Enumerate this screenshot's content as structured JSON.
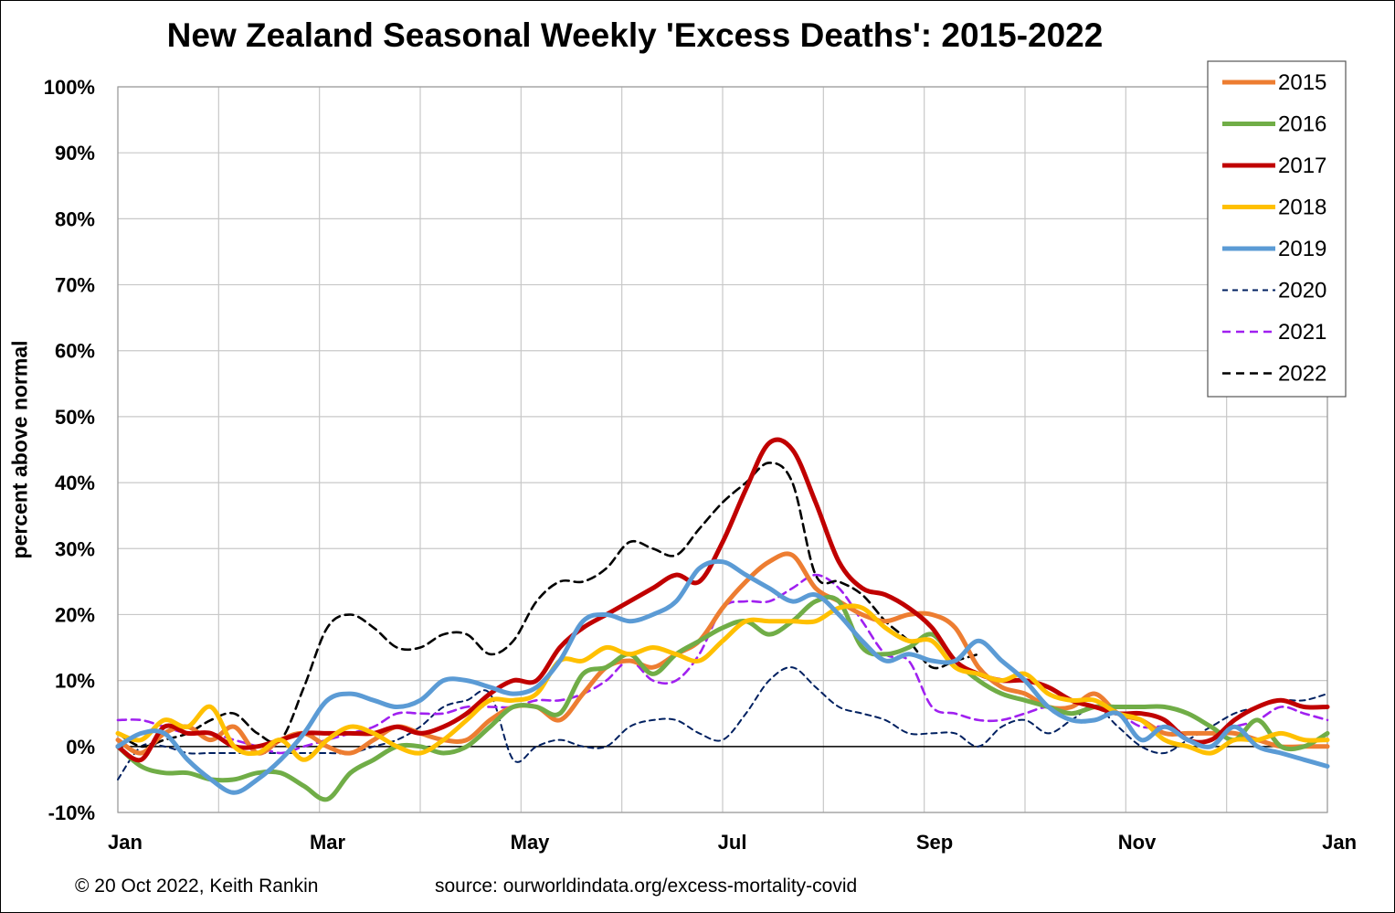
{
  "title": "New Zealand Seasonal Weekly 'Excess Deaths': 2015-2022",
  "footer": {
    "copyright": "© 20 Oct 2022, Keith Rankin",
    "source": "source: ourworldindata.org/excess-mortality-covid"
  },
  "chart_data": {
    "type": "line",
    "title": "New Zealand Seasonal Weekly 'Excess Deaths': 2015-2022",
    "xlabel": "",
    "ylabel": "percent above normal",
    "ylim": [
      -10,
      100
    ],
    "yticks": [
      "-10%",
      "0%",
      "10%",
      "20%",
      "30%",
      "40%",
      "50%",
      "60%",
      "70%",
      "80%",
      "90%",
      "100%"
    ],
    "xlim": [
      0,
      52
    ],
    "xticks": [
      {
        "label": "Jan",
        "week": 0
      },
      {
        "label": "Mar",
        "week": 8.7
      },
      {
        "label": "May",
        "week": 17.4
      },
      {
        "label": "Jul",
        "week": 26.1
      },
      {
        "label": "Sep",
        "week": 34.8
      },
      {
        "label": "Nov",
        "week": 43.5
      },
      {
        "label": "Jan",
        "week": 52.2
      }
    ],
    "x_unit": "week of year",
    "grid": true,
    "legend_position": "top-right",
    "series": [
      {
        "name": "2015",
        "color": "#ED7D31",
        "style": "solid",
        "x": [
          0,
          1,
          2,
          3,
          4,
          5,
          6,
          7,
          8,
          9,
          10,
          11,
          12,
          13,
          14,
          15,
          16,
          17,
          18,
          19,
          20,
          21,
          22,
          23,
          24,
          25,
          26,
          27,
          28,
          29,
          30,
          31,
          32,
          33,
          34,
          35,
          36,
          37,
          38,
          39,
          40,
          41,
          42,
          43,
          44,
          45,
          46,
          47,
          48,
          49,
          50,
          51,
          52
        ],
        "y": [
          1,
          -1,
          2,
          3,
          1,
          3,
          -1,
          1,
          2,
          0,
          -1,
          1,
          3,
          2,
          1,
          1,
          4,
          6,
          6,
          4,
          8,
          12,
          13,
          12,
          14,
          16,
          21,
          25,
          28,
          29,
          24,
          22,
          20,
          19,
          20,
          20,
          18,
          12,
          9,
          8,
          6,
          6,
          8,
          5,
          4,
          2,
          2,
          2,
          2,
          1,
          0,
          0,
          0
        ]
      },
      {
        "name": "2016",
        "color": "#70AD47",
        "style": "solid",
        "x": [
          0,
          1,
          2,
          3,
          4,
          5,
          6,
          7,
          8,
          9,
          10,
          11,
          12,
          13,
          14,
          15,
          16,
          17,
          18,
          19,
          20,
          21,
          22,
          23,
          24,
          25,
          26,
          27,
          28,
          29,
          30,
          31,
          32,
          33,
          34,
          35,
          36,
          37,
          38,
          39,
          40,
          41,
          42,
          43,
          44,
          45,
          46,
          47,
          48,
          49,
          50,
          51,
          52
        ],
        "y": [
          0,
          -3,
          -4,
          -4,
          -5,
          -5,
          -4,
          -4,
          -6,
          -8,
          -4,
          -2,
          0,
          0,
          -1,
          0,
          3,
          6,
          6,
          5,
          11,
          12,
          14,
          11,
          14,
          16,
          18,
          19,
          17,
          19,
          22,
          22,
          15,
          14,
          15,
          17,
          13,
          10,
          8,
          7,
          6,
          5,
          6,
          6,
          6,
          6,
          5,
          3,
          1,
          4,
          0,
          0,
          2
        ]
      },
      {
        "name": "2017",
        "color": "#C00000",
        "style": "solid",
        "x": [
          0,
          1,
          2,
          3,
          4,
          5,
          6,
          7,
          8,
          9,
          10,
          11,
          12,
          13,
          14,
          15,
          16,
          17,
          18,
          19,
          20,
          21,
          22,
          23,
          24,
          25,
          26,
          27,
          28,
          29,
          30,
          31,
          32,
          33,
          34,
          35,
          36,
          37,
          38,
          39,
          40,
          41,
          42,
          43,
          44,
          45,
          46,
          47,
          48,
          49,
          50,
          51,
          52
        ],
        "y": [
          0,
          -2,
          3,
          2,
          2,
          0,
          0,
          1,
          2,
          2,
          2,
          2,
          3,
          2,
          3,
          5,
          8,
          10,
          10,
          15,
          18,
          20,
          22,
          24,
          26,
          25,
          31,
          39,
          46,
          45,
          37,
          28,
          24,
          23,
          21,
          18,
          13,
          11,
          10,
          10,
          9,
          7,
          6,
          5,
          5,
          4,
          1,
          1,
          4,
          6,
          7,
          6,
          6
        ]
      },
      {
        "name": "2018",
        "color": "#FFC000",
        "style": "solid",
        "x": [
          0,
          1,
          2,
          3,
          4,
          5,
          6,
          7,
          8,
          9,
          10,
          11,
          12,
          13,
          14,
          15,
          16,
          17,
          18,
          19,
          20,
          21,
          22,
          23,
          24,
          25,
          26,
          27,
          28,
          29,
          30,
          31,
          32,
          33,
          34,
          35,
          36,
          37,
          38,
          39,
          40,
          41,
          42,
          43,
          44,
          45,
          46,
          47,
          48,
          49,
          50,
          51,
          52
        ],
        "y": [
          2,
          1,
          4,
          3,
          6,
          0,
          -1,
          1,
          -2,
          1,
          3,
          2,
          0,
          -1,
          1,
          4,
          7,
          7,
          8,
          13,
          13,
          15,
          14,
          15,
          14,
          13,
          16,
          19,
          19,
          19,
          19,
          21,
          21,
          18,
          16,
          16,
          12,
          11,
          10,
          11,
          8,
          7,
          7,
          5,
          4,
          1,
          0,
          -1,
          1,
          1,
          2,
          1,
          1
        ]
      },
      {
        "name": "2019",
        "color": "#5B9BD5",
        "style": "solid",
        "x": [
          0,
          1,
          2,
          3,
          4,
          5,
          6,
          7,
          8,
          9,
          10,
          11,
          12,
          13,
          14,
          15,
          16,
          17,
          18,
          19,
          20,
          21,
          22,
          23,
          24,
          25,
          26,
          27,
          28,
          29,
          30,
          31,
          32,
          33,
          34,
          35,
          36,
          37,
          38,
          39,
          40,
          41,
          42,
          43,
          44,
          45,
          46,
          47,
          48,
          49,
          50,
          51,
          52
        ],
        "y": [
          0,
          2,
          2,
          -2,
          -5,
          -7,
          -5,
          -2,
          2,
          7,
          8,
          7,
          6,
          7,
          10,
          10,
          9,
          8,
          9,
          13,
          19,
          20,
          19,
          20,
          22,
          27,
          28,
          26,
          24,
          22,
          23,
          20,
          16,
          13,
          14,
          13,
          13,
          16,
          13,
          10,
          6,
          4,
          4,
          5,
          1,
          3,
          1,
          0,
          3,
          0,
          -1,
          -2,
          -3
        ]
      },
      {
        "name": "2020",
        "color": "#002060",
        "style": "dashed-fine",
        "x": [
          0,
          1,
          2,
          3,
          4,
          5,
          6,
          7,
          8,
          9,
          10,
          11,
          12,
          13,
          14,
          15,
          16,
          17,
          18,
          19,
          20,
          21,
          22,
          23,
          24,
          25,
          26,
          27,
          28,
          29,
          30,
          31,
          32,
          33,
          34,
          35,
          36,
          37,
          38,
          39,
          40,
          41,
          42,
          43,
          44,
          45,
          46,
          47,
          48,
          49,
          50,
          51,
          52
        ],
        "y": [
          -5,
          0,
          0,
          -1,
          -1,
          -1,
          -1,
          -1,
          -1,
          -1,
          -1,
          0,
          1,
          3,
          6,
          7,
          8,
          -2,
          0,
          1,
          0,
          0,
          3,
          4,
          4,
          2,
          1,
          5,
          10,
          12,
          9,
          6,
          5,
          4,
          2,
          2,
          2,
          0,
          3,
          4,
          2,
          4,
          6,
          3,
          0,
          -1,
          1,
          3,
          5,
          6,
          7,
          7,
          8
        ]
      },
      {
        "name": "2021",
        "color": "#A020F0",
        "style": "dashed",
        "x": [
          0,
          1,
          2,
          3,
          4,
          5,
          6,
          7,
          8,
          9,
          10,
          11,
          12,
          13,
          14,
          15,
          16,
          17,
          18,
          19,
          20,
          21,
          22,
          23,
          24,
          25,
          26,
          27,
          28,
          29,
          30,
          31,
          32,
          33,
          34,
          35,
          36,
          37,
          38,
          39,
          40,
          41,
          42,
          43,
          44,
          45,
          46,
          47,
          48,
          49,
          50,
          51,
          52
        ],
        "y": [
          4,
          4,
          3,
          2,
          2,
          1,
          0,
          -1,
          0,
          1,
          2,
          3,
          5,
          5,
          5,
          6,
          6,
          6,
          7,
          7,
          8,
          10,
          13,
          10,
          10,
          14,
          21,
          22,
          22,
          24,
          26,
          24,
          19,
          14,
          13,
          6,
          5,
          4,
          4,
          5,
          6,
          5,
          6,
          5,
          3,
          3,
          2,
          2,
          3,
          4,
          6,
          5,
          4
        ]
      },
      {
        "name": "2022",
        "color": "#000000",
        "style": "dashed",
        "x": [
          0,
          1,
          2,
          3,
          4,
          5,
          6,
          7,
          8,
          9,
          10,
          11,
          12,
          13,
          14,
          15,
          16,
          17,
          18,
          19,
          20,
          21,
          22,
          23,
          24,
          25,
          26,
          27,
          28,
          29,
          30,
          31,
          32,
          33,
          34,
          35,
          36,
          37
        ],
        "y": [
          2,
          0,
          1,
          2,
          4,
          5,
          2,
          1,
          9,
          18,
          20,
          18,
          15,
          15,
          17,
          17,
          14,
          16,
          22,
          25,
          25,
          27,
          31,
          30,
          29,
          33,
          37,
          40,
          43,
          40,
          26,
          25,
          23,
          19,
          16,
          12,
          13,
          14
        ]
      }
    ]
  }
}
